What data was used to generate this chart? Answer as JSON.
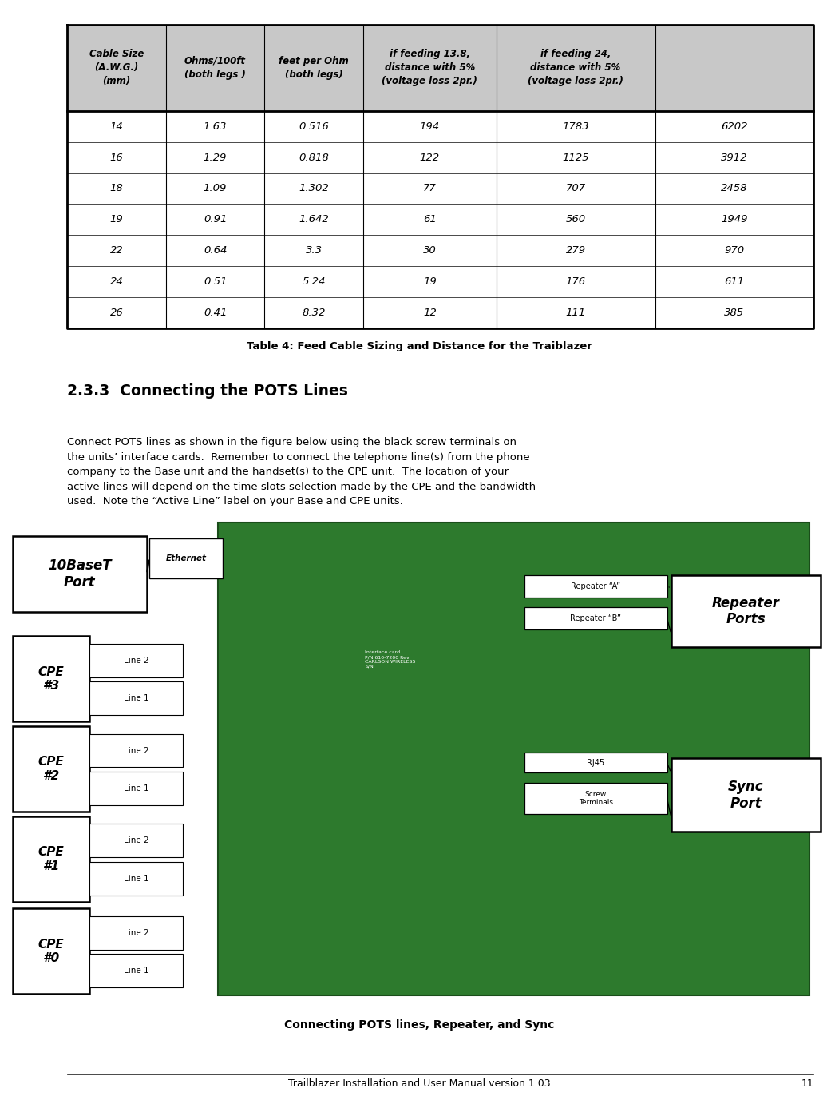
{
  "page_width": 10.51,
  "page_height": 13.92,
  "bg_color": "#ffffff",
  "table_caption": "Table 4: Feed Cable Sizing and Distance for the Traiblazer",
  "section_title": "2.3.3  Connecting the POTS Lines",
  "body_text": "Connect POTS lines as shown in the figure below using the black screw terminals on\nthe units’ interface cards.  Remember to connect the telephone line(s) from the phone\ncompany to the Base unit and the handset(s) to the CPE unit.  The location of your\nactive lines will depend on the time slots selection made by the CPE and the bandwidth\nused.  Note the “Active Line” label on your Base and CPE units.",
  "figure_caption": "Connecting POTS lines, Repeater, and Sync",
  "footer_text": "Trailblazer Installation and User Manual version 1.03",
  "footer_page": "11",
  "table_headers": [
    "Cable Size\n(A.W.G.)\n(mm)",
    "Ohms/100ft\n(both legs )",
    "feet per Ohm\n(both legs)",
    "if feeding 13.8,\ndistance with 5%\n(voltage loss 2pr.)",
    "if feeding 24,\ndistance with 5%\n(voltage loss 2pr.)"
  ],
  "table_data": [
    [
      "14",
      "1.63",
      "0.516",
      "194",
      "1783",
      "6202"
    ],
    [
      "16",
      "1.29",
      "0.818",
      "122",
      "1125",
      "3912"
    ],
    [
      "18",
      "1.09",
      "1.302",
      "77",
      "707",
      "2458"
    ],
    [
      "19",
      "0.91",
      "1.642",
      "61",
      "560",
      "1949"
    ],
    [
      "22",
      "0.64",
      "3.3",
      "30",
      "279",
      "970"
    ],
    [
      "24",
      "0.51",
      "5.24",
      "19",
      "176",
      "611"
    ],
    [
      "26",
      "0.41",
      "8.32",
      "12",
      "111",
      "385"
    ]
  ],
  "header_bg": "#c8c8c8",
  "table_border": "#000000",
  "label_10baseT": "10BaseT\nPort",
  "label_ethernet": "Ethernet",
  "label_repeater_a": "Repeater “A”",
  "label_repeater_b": "Repeater “B”",
  "label_repeater_ports": "Repeater\nPorts",
  "label_rj45": "RJ45",
  "label_screw": "Screw\nTerminals",
  "label_sync_port": "Sync\nPort",
  "cpe_labels": [
    "CPE\n#3",
    "CPE\n#2",
    "CPE\n#1",
    "CPE\n#0"
  ],
  "pcb_color": "#2d7a2d",
  "pcb_edge_color": "#1a4d1a"
}
